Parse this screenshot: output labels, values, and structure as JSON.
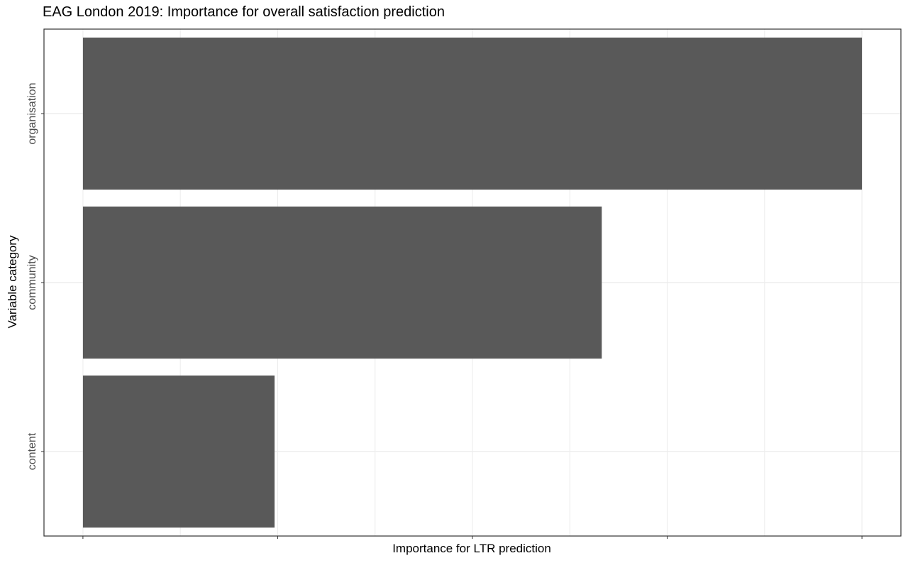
{
  "chart_data": {
    "type": "bar",
    "orientation": "horizontal",
    "title": "EAG London 2019: Importance for overall satisfaction prediction",
    "xlabel": "Importance for LTR prediction",
    "ylabel": "Variable category",
    "categories": [
      "organisation",
      "community",
      "content"
    ],
    "values": [
      1.0,
      0.666,
      0.246
    ],
    "xlim": [
      -0.05,
      1.05
    ],
    "x_tick_labels_shown": false,
    "grid": true,
    "bar_color": "#595959",
    "grid_color": "#ebebeb",
    "panel_border_color": "#333333"
  }
}
